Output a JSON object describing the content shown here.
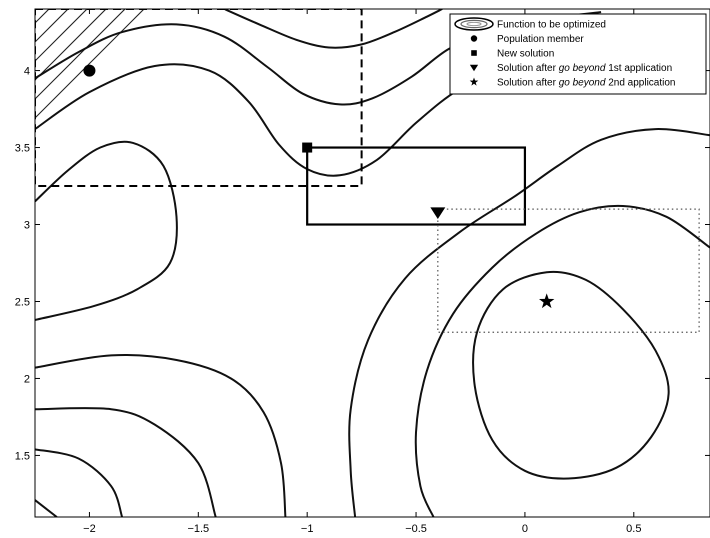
{
  "chart_data": {
    "type": "contour",
    "xlim": [
      -2.25,
      0.85
    ],
    "ylim": [
      1.1,
      4.4
    ],
    "x_ticks": [
      {
        "value": -2,
        "label": "−2"
      },
      {
        "value": -1.5,
        "label": "−1.5"
      },
      {
        "value": -1,
        "label": "−1"
      },
      {
        "value": -0.5,
        "label": "−0.5"
      },
      {
        "value": 0,
        "label": "0"
      },
      {
        "value": 0.5,
        "label": "0.5"
      }
    ],
    "y_ticks": [
      {
        "value": 1.5,
        "label": "1.5"
      },
      {
        "value": 2,
        "label": "2"
      },
      {
        "value": 2.5,
        "label": "2.5"
      },
      {
        "value": 3,
        "label": "3"
      },
      {
        "value": 3.5,
        "label": "3.5"
      },
      {
        "value": 4,
        "label": "4"
      }
    ],
    "grid": false,
    "legend_position": "top-right",
    "legend": [
      {
        "marker": "contour",
        "label": "Function to be optimized"
      },
      {
        "marker": "circle",
        "label": "Population member"
      },
      {
        "marker": "square",
        "label": "New solution"
      },
      {
        "marker": "triangle-down",
        "label_prefix": "Solution after ",
        "label_emph": "go beyond",
        "label_suffix": " 1st application"
      },
      {
        "marker": "star",
        "label_prefix": "Solution after ",
        "label_emph": "go beyond",
        "label_suffix": " 2nd application"
      }
    ],
    "points": [
      {
        "name": "population-member",
        "marker": "circle",
        "x": -2.0,
        "y": 4.0
      },
      {
        "name": "new-solution",
        "marker": "square",
        "x": -1.0,
        "y": 3.5
      },
      {
        "name": "go-beyond-1st",
        "marker": "triangle-down",
        "x": -0.4,
        "y": 3.08
      },
      {
        "name": "go-beyond-2nd",
        "marker": "star",
        "x": 0.1,
        "y": 2.5
      }
    ],
    "regions": [
      {
        "name": "dashed-region",
        "style": "dashed",
        "x": [
          -2.25,
          -0.75
        ],
        "y": [
          3.25,
          4.4
        ]
      },
      {
        "name": "solid-region",
        "style": "solid",
        "x": [
          -1.0,
          0.0
        ],
        "y": [
          3.0,
          3.5
        ]
      },
      {
        "name": "dotted-region",
        "style": "dotted",
        "x": [
          -0.4,
          0.8
        ],
        "y": [
          2.3,
          3.1
        ]
      }
    ],
    "contours": [
      {
        "name": "contour-inner-loop",
        "closed": true,
        "points": [
          [
            0.1,
            2.69
          ],
          [
            0.28,
            2.64
          ],
          [
            0.45,
            2.45
          ],
          [
            0.6,
            2.18
          ],
          [
            0.66,
            1.9
          ],
          [
            0.58,
            1.62
          ],
          [
            0.42,
            1.42
          ],
          [
            0.2,
            1.35
          ],
          [
            0.0,
            1.4
          ],
          [
            -0.15,
            1.6
          ],
          [
            -0.23,
            1.95
          ],
          [
            -0.22,
            2.3
          ],
          [
            -0.1,
            2.58
          ]
        ]
      },
      {
        "name": "contour-middle-basin",
        "closed": false,
        "points": [
          [
            0.85,
            2.85
          ],
          [
            0.65,
            3.05
          ],
          [
            0.45,
            3.12
          ],
          [
            0.25,
            3.08
          ],
          [
            0.05,
            2.94
          ],
          [
            -0.15,
            2.72
          ],
          [
            -0.33,
            2.42
          ],
          [
            -0.45,
            2.05
          ],
          [
            -0.5,
            1.65
          ],
          [
            -0.48,
            1.3
          ],
          [
            -0.42,
            1.1
          ]
        ]
      },
      {
        "name": "contour-outer-basin",
        "closed": false,
        "points": [
          [
            0.85,
            3.58
          ],
          [
            0.6,
            3.62
          ],
          [
            0.35,
            3.55
          ],
          [
            0.15,
            3.38
          ],
          [
            -0.05,
            3.18
          ],
          [
            -0.3,
            2.95
          ],
          [
            -0.55,
            2.65
          ],
          [
            -0.72,
            2.25
          ],
          [
            -0.8,
            1.8
          ],
          [
            -0.8,
            1.4
          ],
          [
            -0.78,
            1.1
          ]
        ]
      },
      {
        "name": "contour-left-lobe",
        "closed": false,
        "points": [
          [
            -2.25,
            3.15
          ],
          [
            -2.1,
            3.35
          ],
          [
            -1.95,
            3.5
          ],
          [
            -1.8,
            3.53
          ],
          [
            -1.66,
            3.38
          ],
          [
            -1.6,
            3.05
          ],
          [
            -1.63,
            2.75
          ],
          [
            -1.78,
            2.58
          ],
          [
            -1.98,
            2.47
          ],
          [
            -2.25,
            2.38
          ]
        ]
      },
      {
        "name": "contour-valley",
        "closed": false,
        "points": [
          [
            -2.25,
            2.07
          ],
          [
            -1.9,
            2.15
          ],
          [
            -1.6,
            2.12
          ],
          [
            -1.35,
            2.0
          ],
          [
            -1.2,
            1.78
          ],
          [
            -1.12,
            1.45
          ],
          [
            -1.1,
            1.1
          ]
        ]
      },
      {
        "name": "contour-lower-1",
        "closed": false,
        "points": [
          [
            -2.25,
            1.8
          ],
          [
            -1.9,
            1.8
          ],
          [
            -1.7,
            1.7
          ],
          [
            -1.5,
            1.45
          ],
          [
            -1.42,
            1.1
          ]
        ]
      },
      {
        "name": "contour-lower-2",
        "closed": false,
        "points": [
          [
            -2.25,
            1.54
          ],
          [
            -2.05,
            1.48
          ],
          [
            -1.9,
            1.3
          ],
          [
            -1.85,
            1.1
          ]
        ]
      },
      {
        "name": "contour-corner",
        "closed": false,
        "points": [
          [
            -2.25,
            1.21
          ],
          [
            -2.15,
            1.1
          ]
        ]
      },
      {
        "name": "contour-upper-1",
        "closed": false,
        "points": [
          [
            -2.25,
            3.62
          ],
          [
            -2.0,
            3.86
          ],
          [
            -1.7,
            4.03
          ],
          [
            -1.45,
            4.0
          ],
          [
            -1.27,
            3.8
          ],
          [
            -1.13,
            3.52
          ],
          [
            -1.0,
            3.36
          ],
          [
            -0.85,
            3.32
          ],
          [
            -0.68,
            3.42
          ],
          [
            -0.5,
            3.66
          ],
          [
            -0.3,
            3.88
          ],
          [
            -0.05,
            4.04
          ],
          [
            0.35,
            4.15
          ],
          [
            0.6,
            4.2
          ]
        ]
      },
      {
        "name": "contour-upper-2",
        "closed": false,
        "points": [
          [
            -2.25,
            3.95
          ],
          [
            -2.05,
            4.12
          ],
          [
            -1.85,
            4.25
          ],
          [
            -1.6,
            4.3
          ],
          [
            -1.38,
            4.22
          ],
          [
            -1.18,
            4.02
          ],
          [
            -1.02,
            3.85
          ],
          [
            -0.85,
            3.78
          ],
          [
            -0.7,
            3.82
          ],
          [
            -0.52,
            3.96
          ],
          [
            -0.35,
            4.14
          ],
          [
            -0.15,
            4.26
          ],
          [
            0.12,
            4.34
          ],
          [
            0.35,
            4.38
          ]
        ]
      },
      {
        "name": "contour-upper-3",
        "closed": false,
        "points": [
          [
            -1.38,
            4.4
          ],
          [
            -1.22,
            4.3
          ],
          [
            -1.05,
            4.2
          ],
          [
            -0.9,
            4.15
          ],
          [
            -0.75,
            4.17
          ],
          [
            -0.6,
            4.25
          ],
          [
            -0.45,
            4.35
          ],
          [
            -0.38,
            4.4
          ]
        ]
      }
    ]
  }
}
